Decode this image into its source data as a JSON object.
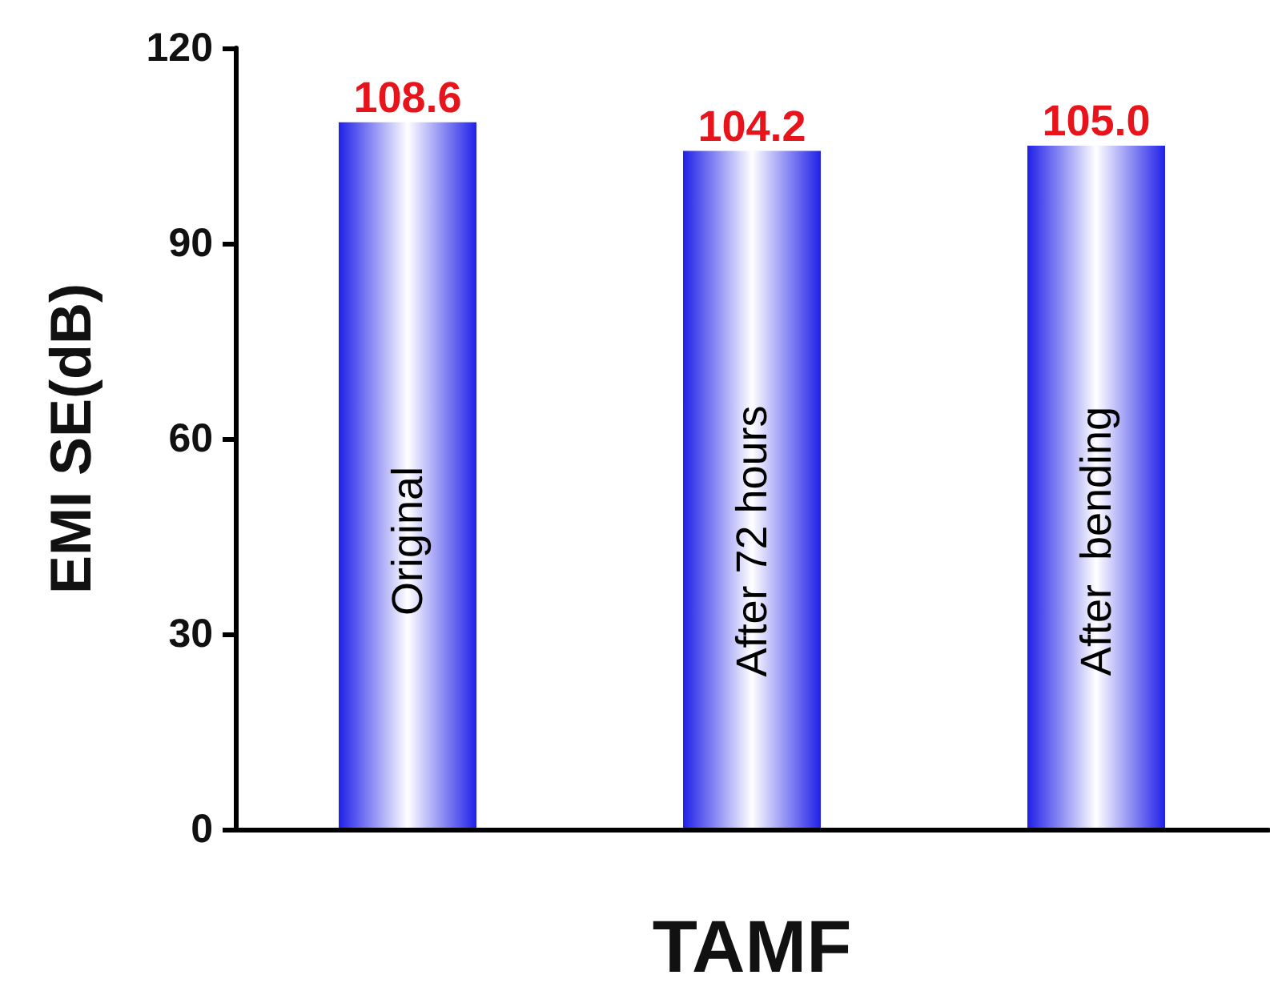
{
  "chart_data": {
    "type": "bar",
    "xlabel": "TAMF",
    "ylabel": "EMI SE(dB)",
    "categories": [
      "Original",
      "After 72 hours",
      "After  bending"
    ],
    "values": [
      108.6,
      104.2,
      105.0
    ],
    "value_labels": [
      "108.6",
      "104.2",
      "105.0"
    ],
    "color": "#2020e8",
    "ylim": [
      0,
      120
    ],
    "yticks": [
      0,
      30,
      60,
      90,
      120
    ],
    "grid": false
  }
}
